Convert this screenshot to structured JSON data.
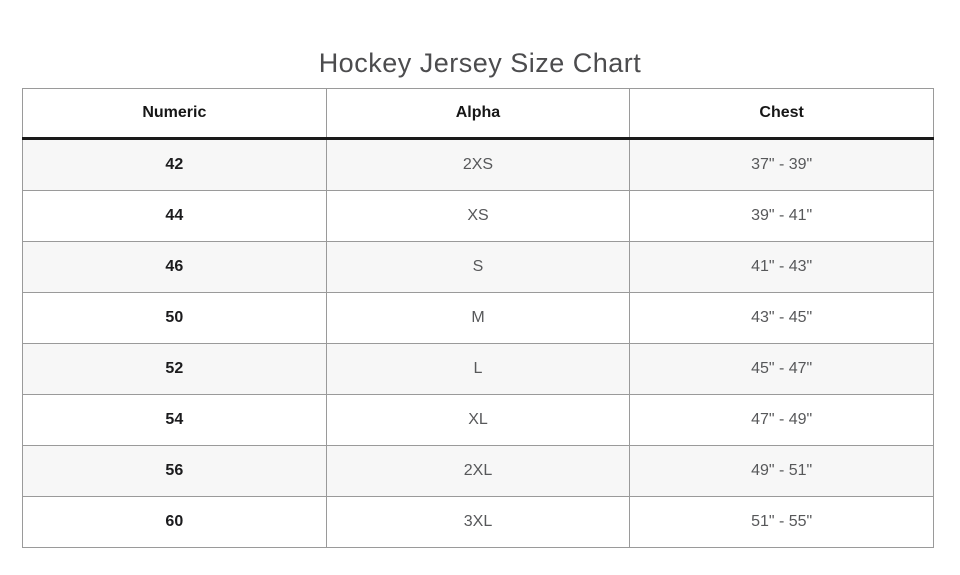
{
  "page_title": "Hockey Jersey Size Chart",
  "chart_data": {
    "type": "table",
    "title": "Hockey Jersey Size Chart",
    "columns": [
      "Numeric",
      "Alpha",
      "Chest"
    ],
    "rows": [
      [
        "42",
        "2XS",
        "37\" - 39\""
      ],
      [
        "44",
        "XS",
        "39\" - 41\""
      ],
      [
        "46",
        "S",
        "41\" - 43\""
      ],
      [
        "50",
        "M",
        "43\" - 45\""
      ],
      [
        "52",
        "L",
        "45\" - 47\""
      ],
      [
        "54",
        "XL",
        "47\" - 49\""
      ],
      [
        "56",
        "2XL",
        "49\" - 51\""
      ],
      [
        "60",
        "3XL",
        "51\" - 55\""
      ]
    ],
    "layout": {
      "striped_rows": "odd",
      "legend": "none",
      "grid": "full-borders"
    }
  },
  "colors": {
    "background": "#ffffff",
    "title_text": "#4c4c4e",
    "header_text": "#161616",
    "numeric_text": "#1b1b1d",
    "secondary_text": "#57585a",
    "row_stripe": "#f7f7f7",
    "grid_border": "#9a9a9a",
    "header_rule": "#1a1a1a"
  }
}
